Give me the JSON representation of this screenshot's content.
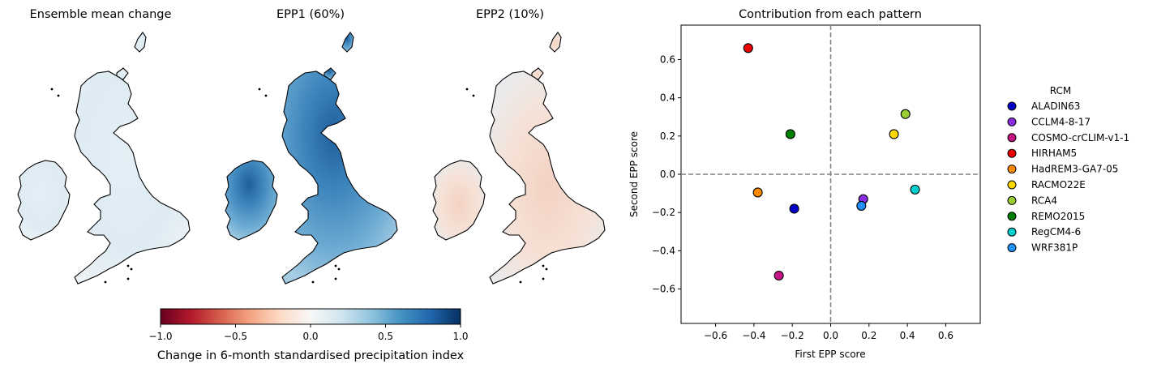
{
  "maps": [
    {
      "id": "mean",
      "title": "Ensemble mean change",
      "style": "mean"
    },
    {
      "id": "epp1",
      "title": "EPP1 (60%)",
      "style": "epp1"
    },
    {
      "id": "epp2",
      "title": "EPP2 (10%)",
      "style": "epp2"
    }
  ],
  "colorbar": {
    "label": "Change in 6-month standardised precipitation index",
    "ticks": [
      {
        "value": -1.0,
        "label": "−1.0"
      },
      {
        "value": -0.5,
        "label": "−0.5"
      },
      {
        "value": 0.0,
        "label": "0.0"
      },
      {
        "value": 0.5,
        "label": "0.5"
      },
      {
        "value": 1.0,
        "label": "1.0"
      }
    ],
    "range": [
      -1.0,
      1.0
    ],
    "colormap": "RdBu"
  },
  "chart_data": {
    "type": "scatter",
    "title": "Contribution from each pattern",
    "xlabel": "First EPP score",
    "ylabel": "Second EPP score",
    "xlim": [
      -0.78,
      0.78
    ],
    "ylim": [
      -0.78,
      0.78
    ],
    "xticks": [
      {
        "value": -0.6,
        "label": "−0.6"
      },
      {
        "value": -0.4,
        "label": "−0.4"
      },
      {
        "value": -0.2,
        "label": "−0.2"
      },
      {
        "value": 0.0,
        "label": "0.0"
      },
      {
        "value": 0.2,
        "label": "0.2"
      },
      {
        "value": 0.4,
        "label": "0.4"
      },
      {
        "value": 0.6,
        "label": "0.6"
      }
    ],
    "yticks": [
      {
        "value": 0.6,
        "label": "0.6"
      },
      {
        "value": 0.4,
        "label": "0.4"
      },
      {
        "value": 0.2,
        "label": "0.2"
      },
      {
        "value": 0.0,
        "label": "0.0"
      },
      {
        "value": -0.2,
        "label": "−0.2"
      },
      {
        "value": -0.4,
        "label": "−0.4"
      },
      {
        "value": -0.6,
        "label": "−0.6"
      }
    ],
    "grid": false,
    "reference_lines": {
      "x": 0.0,
      "y": 0.0,
      "style": "dashed",
      "color": "#808080"
    },
    "legend": {
      "title": "RCM",
      "placement": "outside-right"
    },
    "points": [
      {
        "name": "ALADIN63",
        "x": -0.19,
        "y": -0.18,
        "color": "#0000c8"
      },
      {
        "name": "CCLM4-8-17",
        "x": 0.17,
        "y": -0.13,
        "color": "#8a2be2"
      },
      {
        "name": "COSMO-crCLIM-v1-1",
        "x": -0.27,
        "y": -0.53,
        "color": "#c71585"
      },
      {
        "name": "HIRHAM5",
        "x": -0.43,
        "y": 0.66,
        "color": "#ee0000"
      },
      {
        "name": "HadREM3-GA7-05",
        "x": -0.38,
        "y": -0.095,
        "color": "#ff8c00"
      },
      {
        "name": "RACMO22E",
        "x": 0.33,
        "y": 0.21,
        "color": "#ffd700"
      },
      {
        "name": "RCA4",
        "x": 0.39,
        "y": 0.315,
        "color": "#9acd32"
      },
      {
        "name": "REMO2015",
        "x": -0.21,
        "y": 0.21,
        "color": "#008000"
      },
      {
        "name": "RegCM4-6",
        "x": 0.44,
        "y": -0.08,
        "color": "#00ced1"
      },
      {
        "name": "WRF381P",
        "x": 0.16,
        "y": -0.165,
        "color": "#1e90ff"
      }
    ]
  }
}
